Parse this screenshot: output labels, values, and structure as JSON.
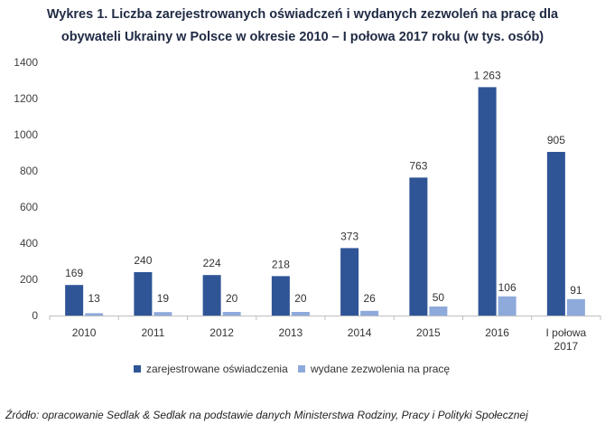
{
  "title_line1": "Wykres 1. Liczba zarejestrowanych oświadczeń i wydanych zezwoleń na pracę dla",
  "title_line2": "obywateli Ukrainy w Polsce w okresie 2010 – I połowa 2017 roku (w tys. osób)",
  "source": "Źródło: opracowanie Sedlak & Sedlak na podstawie danych Ministerstwa Rodziny, Pracy i Polityki Społecznej",
  "chart_data": {
    "type": "bar",
    "title": "Wykres 1. Liczba zarejestrowanych oświadczeń i wydanych zezwoleń na pracę dla obywateli Ukrainy w Polsce w okresie 2010 – I połowa 2017 roku (w tys. osób)",
    "categories": [
      "2010",
      "2011",
      "2012",
      "2013",
      "2014",
      "2015",
      "2016",
      [
        "I połowa",
        "2017"
      ]
    ],
    "series": [
      {
        "name": "zarejestrowane oświadczenia",
        "color": "#2f5597",
        "values": [
          169,
          240,
          224,
          218,
          373,
          763,
          1263,
          905
        ],
        "labels": [
          "169",
          "240",
          "224",
          "218",
          "373",
          "763",
          "1 263",
          "905"
        ]
      },
      {
        "name": "wydane zezwolenia na pracę",
        "color": "#8eaadb",
        "values": [
          13,
          19,
          20,
          20,
          26,
          50,
          106,
          91
        ],
        "labels": [
          "13",
          "19",
          "20",
          "20",
          "26",
          "50",
          "106",
          "91"
        ]
      }
    ],
    "yticks": [
      0,
      200,
      400,
      600,
      800,
      1000,
      1200,
      1400
    ],
    "ylim": [
      0,
      1400
    ],
    "xlabel": "",
    "ylabel": "",
    "legend": "bottom",
    "grid": false
  }
}
